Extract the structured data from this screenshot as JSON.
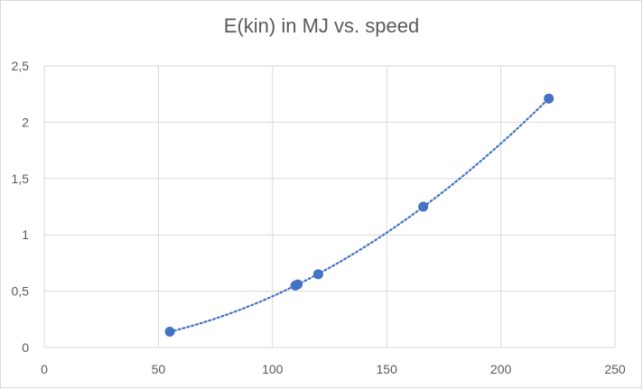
{
  "chart_data": {
    "type": "scatter",
    "title": "E(kin) in MJ vs. speed",
    "xlabel": "",
    "ylabel": "",
    "xlim": [
      0,
      250
    ],
    "ylim": [
      0,
      2.5
    ],
    "x_ticks": [
      "0",
      "50",
      "100",
      "150",
      "200",
      "250"
    ],
    "y_ticks": [
      "0",
      "0,5",
      "1",
      "1,5",
      "2",
      "2,5"
    ],
    "grid": true,
    "legend": "none",
    "series": [
      {
        "x": [
          55,
          110,
          111,
          120,
          166,
          221
        ],
        "y": [
          0.14,
          0.55,
          0.56,
          0.65,
          1.25,
          2.21
        ],
        "marker_color": "#4472c4",
        "trendline": {
          "type": "polynomial",
          "style": "dotted",
          "color": "#4472c4"
        }
      }
    ]
  }
}
